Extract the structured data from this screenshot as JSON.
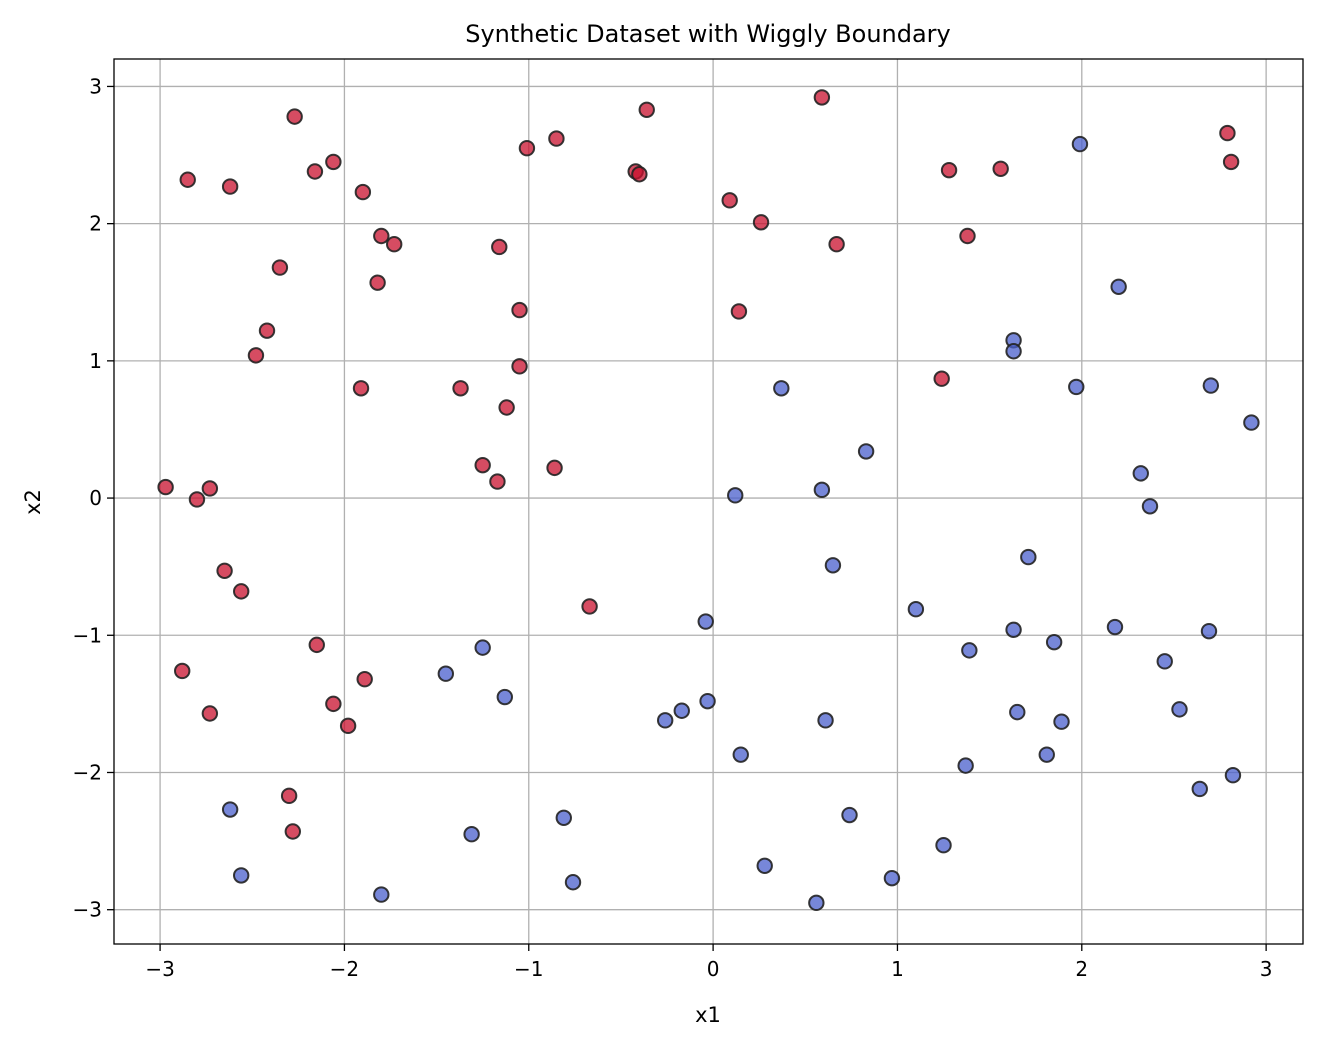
{
  "chart_data": {
    "type": "scatter",
    "title": "Synthetic Dataset with Wiggly Boundary",
    "xlabel": "x1",
    "ylabel": "x2",
    "xlim": [
      -3.25,
      3.2
    ],
    "ylim": [
      -3.25,
      3.2
    ],
    "xticks": [
      -3,
      -2,
      -1,
      0,
      1,
      2,
      3
    ],
    "yticks": [
      -3,
      -2,
      -1,
      0,
      1,
      2,
      3
    ],
    "xtick_labels": [
      "−3",
      "−2",
      "−1",
      "0",
      "1",
      "2",
      "3"
    ],
    "ytick_labels": [
      "−3",
      "−2",
      "−1",
      "0",
      "1",
      "2",
      "3"
    ],
    "grid": true,
    "colors": {
      "class_red": "#c8102e",
      "class_blue": "#4a5fcc",
      "edge": "#222222",
      "grid": "#b0b0b0"
    },
    "series": [
      {
        "color": "#c8102e",
        "points": [
          [
            -2.85,
            2.32
          ],
          [
            -2.62,
            2.27
          ],
          [
            -2.27,
            2.78
          ],
          [
            -2.16,
            2.38
          ],
          [
            -2.06,
            2.45
          ],
          [
            -1.9,
            2.23
          ],
          [
            -1.8,
            1.91
          ],
          [
            -1.73,
            1.85
          ],
          [
            -1.82,
            1.57
          ],
          [
            -2.35,
            1.68
          ],
          [
            -2.42,
            1.22
          ],
          [
            -2.48,
            1.04
          ],
          [
            -1.91,
            0.8
          ],
          [
            -1.37,
            0.8
          ],
          [
            -1.16,
            1.83
          ],
          [
            -1.05,
            1.37
          ],
          [
            -1.05,
            0.96
          ],
          [
            -1.12,
            0.66
          ],
          [
            -1.25,
            0.24
          ],
          [
            -1.17,
            0.12
          ],
          [
            -1.01,
            2.55
          ],
          [
            -0.85,
            2.62
          ],
          [
            -0.42,
            2.38
          ],
          [
            -0.4,
            2.36
          ],
          [
            -0.36,
            2.83
          ],
          [
            -0.86,
            0.22
          ],
          [
            -0.67,
            -0.79
          ],
          [
            0.09,
            2.17
          ],
          [
            0.26,
            2.01
          ],
          [
            0.14,
            1.36
          ],
          [
            0.59,
            2.92
          ],
          [
            0.67,
            1.85
          ],
          [
            1.28,
            2.39
          ],
          [
            1.38,
            1.91
          ],
          [
            1.24,
            0.87
          ],
          [
            1.56,
            2.4
          ],
          [
            2.79,
            2.66
          ],
          [
            2.81,
            2.45
          ],
          [
            -2.97,
            0.08
          ],
          [
            -2.73,
            0.07
          ],
          [
            -2.8,
            -0.01
          ],
          [
            -2.65,
            -0.53
          ],
          [
            -2.56,
            -0.68
          ],
          [
            -2.88,
            -1.26
          ],
          [
            -2.73,
            -1.57
          ],
          [
            -2.15,
            -1.07
          ],
          [
            -2.06,
            -1.5
          ],
          [
            -1.89,
            -1.32
          ],
          [
            -1.98,
            -1.66
          ],
          [
            -2.3,
            -2.17
          ],
          [
            -2.28,
            -2.43
          ]
        ]
      },
      {
        "color": "#4a5fcc",
        "points": [
          [
            1.99,
            2.58
          ],
          [
            2.2,
            1.54
          ],
          [
            1.63,
            1.15
          ],
          [
            1.63,
            1.07
          ],
          [
            1.97,
            0.81
          ],
          [
            2.7,
            0.82
          ],
          [
            2.92,
            0.55
          ],
          [
            0.37,
            0.8
          ],
          [
            0.83,
            0.34
          ],
          [
            0.12,
            0.02
          ],
          [
            0.59,
            0.06
          ],
          [
            2.32,
            0.18
          ],
          [
            2.37,
            -0.06
          ],
          [
            1.71,
            -0.43
          ],
          [
            0.65,
            -0.49
          ],
          [
            1.1,
            -0.81
          ],
          [
            -0.04,
            -0.9
          ],
          [
            1.63,
            -0.96
          ],
          [
            2.18,
            -0.94
          ],
          [
            2.69,
            -0.97
          ],
          [
            1.39,
            -1.11
          ],
          [
            1.85,
            -1.05
          ],
          [
            2.45,
            -1.19
          ],
          [
            -1.45,
            -1.28
          ],
          [
            -1.25,
            -1.09
          ],
          [
            -1.13,
            -1.45
          ],
          [
            -0.26,
            -1.62
          ],
          [
            -0.17,
            -1.55
          ],
          [
            -0.03,
            -1.48
          ],
          [
            0.61,
            -1.62
          ],
          [
            1.65,
            -1.56
          ],
          [
            1.89,
            -1.63
          ],
          [
            2.53,
            -1.54
          ],
          [
            0.15,
            -1.87
          ],
          [
            1.37,
            -1.95
          ],
          [
            1.81,
            -1.87
          ],
          [
            2.82,
            -2.02
          ],
          [
            2.64,
            -2.12
          ],
          [
            -2.62,
            -2.27
          ],
          [
            -0.81,
            -2.33
          ],
          [
            0.74,
            -2.31
          ],
          [
            1.25,
            -2.53
          ],
          [
            -1.31,
            -2.45
          ],
          [
            0.28,
            -2.68
          ],
          [
            -2.56,
            -2.75
          ],
          [
            -0.76,
            -2.8
          ],
          [
            0.97,
            -2.77
          ],
          [
            -1.8,
            -2.89
          ],
          [
            0.56,
            -2.95
          ]
        ]
      }
    ]
  }
}
